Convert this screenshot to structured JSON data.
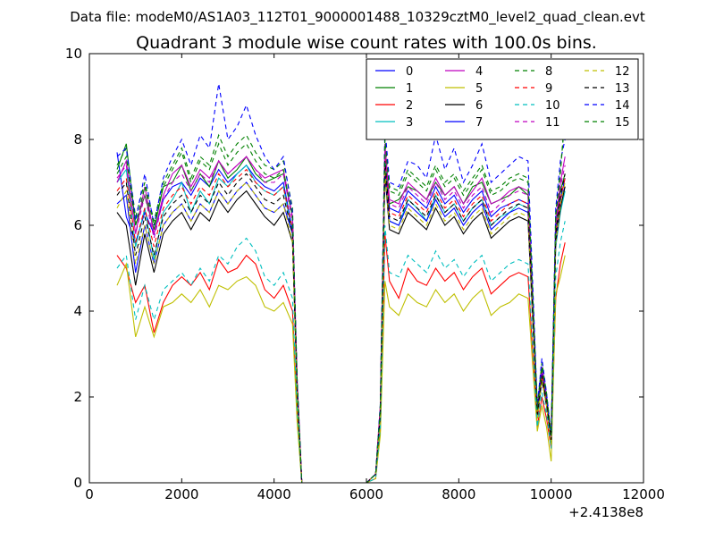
{
  "header": {
    "file_label": "Data file: modeM0/AS1A03_112T01_9000001488_10329cztM0_level2_quad_clean.evt"
  },
  "chart_data": {
    "type": "line",
    "title": "Quadrant 3 module wise count rates with 100.0s bins.",
    "xlabel": "",
    "ylabel": "",
    "x_offset_label": "+2.4138e8",
    "xlim": [
      0,
      12000
    ],
    "ylim": [
      0,
      10
    ],
    "xticks": [
      0,
      2000,
      4000,
      6000,
      8000,
      10000,
      12000
    ],
    "xtick_labels": [
      "0",
      "2000",
      "4000",
      "6000",
      "8000",
      "10000",
      "12000"
    ],
    "yticks": [
      0,
      2,
      4,
      6,
      8,
      10
    ],
    "ytick_labels": [
      "0",
      "2",
      "4",
      "6",
      "8",
      "10"
    ],
    "grid": false,
    "legend_position": "top-right",
    "x": [
      600,
      800,
      1000,
      1200,
      1400,
      1600,
      1800,
      2000,
      2200,
      2400,
      2600,
      2800,
      3000,
      3200,
      3400,
      3600,
      3800,
      4000,
      4200,
      4400,
      4500,
      4600,
      5000,
      5500,
      6000,
      6200,
      6300,
      6400,
      6500,
      6700,
      6900,
      7100,
      7300,
      7500,
      7700,
      7900,
      8100,
      8300,
      8500,
      8700,
      8900,
      9100,
      9300,
      9500,
      9700,
      9800,
      9900,
      10000,
      10100,
      10200,
      10300
    ],
    "series": [
      {
        "name": "0",
        "color": "#0000ff",
        "dash": "solid",
        "values": [
          7.7,
          6.2,
          5.6,
          6.3,
          5.8,
          6.6,
          6.9,
          7.0,
          6.7,
          7.1,
          6.9,
          7.3,
          7.0,
          7.2,
          7.4,
          7.1,
          6.9,
          6.8,
          7.0,
          5.9,
          2.3,
          0,
          0,
          0,
          0,
          0.2,
          1.6,
          7.8,
          6.4,
          6.3,
          6.8,
          6.6,
          6.4,
          6.9,
          6.5,
          6.7,
          6.3,
          6.6,
          6.8,
          6.2,
          6.4,
          6.5,
          6.6,
          6.5,
          1.6,
          2.6,
          1.9,
          1.0,
          5.8,
          6.6,
          6.9
        ]
      },
      {
        "name": "1",
        "color": "#008000",
        "dash": "solid",
        "values": [
          7.3,
          7.9,
          6.0,
          6.7,
          5.9,
          6.9,
          7.0,
          7.4,
          6.8,
          7.2,
          6.9,
          7.5,
          7.1,
          7.3,
          7.6,
          7.2,
          7.0,
          7.1,
          7.2,
          6.2,
          2.3,
          0,
          0,
          0,
          0,
          0.2,
          1.7,
          7.7,
          6.5,
          6.6,
          6.9,
          6.8,
          6.6,
          7.0,
          6.7,
          6.9,
          6.5,
          6.9,
          7.0,
          6.5,
          6.6,
          6.7,
          6.9,
          6.7,
          1.7,
          2.7,
          2.0,
          1.1,
          6.0,
          6.8,
          7.2
        ]
      },
      {
        "name": "2",
        "color": "#ff0000",
        "dash": "solid",
        "values": [
          5.3,
          5.0,
          4.2,
          4.6,
          3.5,
          4.2,
          4.6,
          4.8,
          4.6,
          4.9,
          4.5,
          5.2,
          4.9,
          5.0,
          5.3,
          5.1,
          4.5,
          4.3,
          4.6,
          4.0,
          1.6,
          0,
          0,
          0,
          0,
          0.1,
          1.2,
          5.8,
          4.7,
          4.3,
          5.0,
          4.7,
          4.6,
          5.0,
          4.7,
          4.9,
          4.5,
          4.8,
          5.0,
          4.4,
          4.6,
          4.8,
          4.9,
          4.8,
          1.3,
          2.0,
          1.5,
          0.8,
          4.3,
          5.1,
          5.6
        ]
      },
      {
        "name": "3",
        "color": "#00bfbf",
        "dash": "solid",
        "values": [
          7.0,
          7.3,
          5.5,
          6.4,
          5.2,
          6.3,
          6.6,
          7.0,
          6.3,
          6.8,
          6.5,
          7.1,
          6.9,
          7.2,
          7.4,
          7.0,
          6.8,
          6.7,
          6.9,
          5.8,
          2.2,
          0,
          0,
          0,
          0,
          0.2,
          1.6,
          7.6,
          6.1,
          6.0,
          6.6,
          6.4,
          6.1,
          6.7,
          6.3,
          6.5,
          6.1,
          6.4,
          6.6,
          6.0,
          6.2,
          6.3,
          6.5,
          6.4,
          1.5,
          2.4,
          1.8,
          0.9,
          5.5,
          6.3,
          6.8
        ]
      },
      {
        "name": "4",
        "color": "#bf00bf",
        "dash": "solid",
        "values": [
          7.0,
          7.5,
          5.8,
          6.9,
          5.8,
          6.7,
          7.2,
          7.4,
          6.9,
          7.3,
          7.1,
          7.5,
          7.2,
          7.4,
          7.6,
          7.3,
          7.1,
          7.2,
          7.3,
          6.2,
          2.4,
          0,
          0,
          0,
          0,
          0.2,
          1.8,
          7.9,
          6.6,
          6.5,
          7.0,
          6.8,
          6.6,
          7.1,
          6.7,
          6.9,
          6.5,
          6.8,
          7.1,
          6.5,
          6.6,
          6.8,
          6.9,
          6.8,
          1.7,
          2.7,
          2.0,
          1.1,
          6.1,
          7.0,
          7.6
        ]
      },
      {
        "name": "5",
        "color": "#bfbf00",
        "dash": "solid",
        "values": [
          4.6,
          5.1,
          3.4,
          4.1,
          3.4,
          4.1,
          4.2,
          4.4,
          4.2,
          4.5,
          4.1,
          4.6,
          4.5,
          4.7,
          4.8,
          4.6,
          4.1,
          4.0,
          4.2,
          3.7,
          1.4,
          0,
          0,
          0,
          0,
          0.1,
          1.1,
          4.7,
          4.1,
          3.9,
          4.4,
          4.2,
          4.1,
          4.5,
          4.2,
          4.4,
          4.0,
          4.3,
          4.5,
          3.9,
          4.1,
          4.2,
          4.4,
          4.3,
          1.2,
          1.8,
          1.3,
          0.5,
          4.4,
          4.8,
          5.3
        ]
      },
      {
        "name": "6",
        "color": "#000000",
        "dash": "solid",
        "values": [
          6.3,
          6.0,
          4.6,
          5.8,
          4.9,
          5.8,
          6.1,
          6.3,
          5.9,
          6.3,
          6.1,
          6.6,
          6.3,
          6.6,
          6.8,
          6.5,
          6.2,
          6.0,
          6.3,
          5.6,
          2.1,
          0,
          0,
          0,
          0,
          0.2,
          1.5,
          7.2,
          5.9,
          5.8,
          6.3,
          6.1,
          5.9,
          6.4,
          6.0,
          6.2,
          5.8,
          6.1,
          6.3,
          5.7,
          5.9,
          6.1,
          6.2,
          6.1,
          1.5,
          2.4,
          1.8,
          0.9,
          5.6,
          6.4,
          6.9
        ]
      },
      {
        "name": "7",
        "color": "#0000ff",
        "dash": "solid",
        "values": [
          6.5,
          6.7,
          4.9,
          6.0,
          5.1,
          6.0,
          6.3,
          6.5,
          6.1,
          6.5,
          6.3,
          6.8,
          6.5,
          6.8,
          7.0,
          6.7,
          6.4,
          6.3,
          6.5,
          5.8,
          2.2,
          0,
          0,
          0,
          0,
          0.2,
          1.5,
          7.4,
          6.1,
          6.0,
          6.5,
          6.3,
          6.1,
          6.6,
          6.2,
          6.4,
          6.0,
          6.3,
          6.5,
          5.9,
          6.1,
          6.3,
          6.4,
          6.3,
          1.6,
          2.5,
          1.9,
          1.0,
          5.7,
          6.6,
          7.1
        ]
      },
      {
        "name": "8",
        "color": "#008000",
        "dash": "dashed",
        "values": [
          7.4,
          7.8,
          6.2,
          7.0,
          6.1,
          7.0,
          7.4,
          7.8,
          7.1,
          7.6,
          7.4,
          8.1,
          7.6,
          7.9,
          8.1,
          7.7,
          7.4,
          7.3,
          7.5,
          6.4,
          2.4,
          0,
          0,
          0,
          0,
          0.2,
          1.8,
          8.1,
          6.9,
          6.8,
          7.3,
          7.1,
          6.9,
          7.4,
          7.0,
          7.2,
          6.8,
          7.1,
          7.4,
          6.8,
          6.9,
          7.1,
          7.2,
          7.1,
          1.8,
          2.8,
          2.1,
          1.1,
          6.3,
          7.3,
          8.5
        ]
      },
      {
        "name": "9",
        "color": "#ff0000",
        "dash": "dashed",
        "values": [
          6.8,
          7.1,
          5.6,
          6.4,
          5.5,
          6.4,
          6.7,
          6.9,
          6.5,
          6.9,
          6.7,
          7.2,
          6.9,
          7.1,
          7.3,
          7.0,
          6.8,
          6.7,
          6.9,
          5.9,
          2.2,
          0,
          0,
          0,
          0,
          0.2,
          1.7,
          7.6,
          6.3,
          6.2,
          6.7,
          6.5,
          6.3,
          6.8,
          6.4,
          6.6,
          6.2,
          6.5,
          6.7,
          6.1,
          6.3,
          6.5,
          6.6,
          6.5,
          1.6,
          2.5,
          1.9,
          1.0,
          5.8,
          6.6,
          7.1
        ]
      },
      {
        "name": "10",
        "color": "#00bfbf",
        "dash": "dashed",
        "values": [
          5.0,
          5.3,
          3.8,
          4.6,
          3.8,
          4.5,
          4.7,
          4.9,
          4.6,
          5.0,
          4.7,
          5.3,
          5.1,
          5.5,
          5.7,
          5.4,
          4.8,
          4.6,
          4.9,
          4.3,
          1.7,
          0,
          0,
          0,
          0,
          0.1,
          1.3,
          6.0,
          4.9,
          4.8,
          5.3,
          5.1,
          4.9,
          5.4,
          5.0,
          5.2,
          4.8,
          5.1,
          5.3,
          4.7,
          4.9,
          5.1,
          5.2,
          5.1,
          1.3,
          2.1,
          1.6,
          0.8,
          4.8,
          5.6,
          6.1
        ]
      },
      {
        "name": "11",
        "color": "#bf00bf",
        "dash": "dashed",
        "values": [
          7.1,
          7.4,
          5.8,
          6.7,
          5.7,
          6.6,
          7.0,
          7.2,
          6.8,
          7.2,
          7.0,
          7.5,
          7.2,
          7.4,
          7.6,
          7.3,
          7.0,
          7.0,
          7.2,
          6.1,
          2.3,
          0,
          0,
          0,
          0,
          0.2,
          1.7,
          7.8,
          6.5,
          6.4,
          6.9,
          6.7,
          6.5,
          7.0,
          6.6,
          6.8,
          6.4,
          6.7,
          6.9,
          6.3,
          6.5,
          6.7,
          6.8,
          6.7,
          1.7,
          2.6,
          2.0,
          1.0,
          6.0,
          6.9,
          7.4
        ]
      },
      {
        "name": "12",
        "color": "#bfbf00",
        "dash": "dashed",
        "values": [
          6.4,
          6.8,
          5.1,
          6.0,
          5.1,
          6.0,
          6.3,
          6.5,
          6.1,
          6.5,
          6.3,
          6.8,
          6.5,
          6.8,
          7.0,
          6.7,
          6.4,
          6.3,
          6.5,
          5.6,
          2.1,
          0,
          0,
          0,
          0,
          0.2,
          1.5,
          7.3,
          6.0,
          5.9,
          6.4,
          6.2,
          6.0,
          6.5,
          6.1,
          6.3,
          5.9,
          6.2,
          6.4,
          5.8,
          6.0,
          6.2,
          6.3,
          6.2,
          1.5,
          2.4,
          1.8,
          0.9,
          5.6,
          6.5,
          7.0
        ]
      },
      {
        "name": "13",
        "color": "#000000",
        "dash": "dashed",
        "values": [
          6.7,
          7.0,
          5.3,
          6.2,
          5.3,
          6.2,
          6.5,
          6.7,
          6.3,
          6.7,
          6.5,
          7.0,
          6.7,
          7.0,
          7.2,
          6.9,
          6.6,
          6.5,
          6.7,
          5.8,
          2.2,
          0,
          0,
          0,
          0,
          0.2,
          1.6,
          7.5,
          6.2,
          6.1,
          6.6,
          6.4,
          6.2,
          6.7,
          6.3,
          6.5,
          6.1,
          6.4,
          6.6,
          6.0,
          6.2,
          6.4,
          6.5,
          6.4,
          1.6,
          2.5,
          1.9,
          1.0,
          5.8,
          6.7,
          7.2
        ]
      },
      {
        "name": "14",
        "color": "#0000ff",
        "dash": "dashed",
        "values": [
          7.6,
          7.8,
          6.1,
          7.2,
          6.0,
          7.1,
          7.6,
          8.0,
          7.4,
          8.1,
          7.8,
          9.3,
          8.0,
          8.3,
          8.8,
          8.1,
          7.6,
          7.3,
          7.6,
          6.3,
          2.4,
          0,
          0,
          0,
          0,
          0.2,
          1.8,
          8.3,
          7.0,
          6.9,
          7.5,
          7.4,
          7.1,
          8.1,
          7.3,
          7.8,
          7.0,
          7.4,
          7.9,
          7.0,
          7.2,
          7.4,
          7.6,
          7.5,
          1.8,
          2.9,
          2.1,
          1.1,
          6.4,
          7.5,
          8.0
        ]
      },
      {
        "name": "15",
        "color": "#008000",
        "dash": "dashed",
        "values": [
          7.2,
          7.6,
          6.0,
          6.9,
          6.0,
          6.9,
          7.3,
          7.7,
          7.0,
          7.5,
          7.3,
          7.9,
          7.4,
          7.7,
          7.9,
          7.5,
          7.2,
          7.1,
          7.3,
          6.2,
          2.3,
          0,
          0,
          0,
          0,
          0.2,
          1.7,
          8.0,
          6.8,
          6.7,
          7.2,
          7.0,
          6.8,
          7.3,
          6.9,
          7.1,
          6.7,
          7.0,
          7.3,
          6.7,
          6.8,
          7.0,
          7.1,
          7.0,
          1.7,
          2.7,
          2.0,
          1.1,
          6.2,
          7.2,
          8.6
        ]
      }
    ]
  }
}
